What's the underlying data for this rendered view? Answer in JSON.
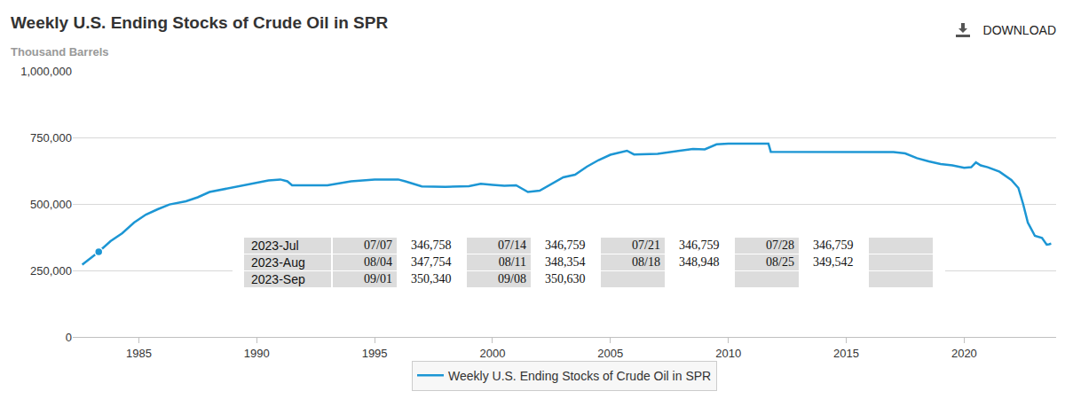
{
  "chart_data": {
    "type": "line",
    "title": "Weekly U.S. Ending Stocks of Crude Oil in SPR",
    "subtitle": "Thousand Barrels",
    "button": "DOWNLOAD",
    "x": [
      1982.6,
      1983.3,
      1983.8,
      1984.3,
      1984.8,
      1985.3,
      1985.8,
      1986.3,
      1987.0,
      1987.5,
      1988.0,
      1989.0,
      1990.0,
      1990.5,
      1991.0,
      1991.3,
      1991.5,
      1993.0,
      1994.0,
      1995.0,
      1996.0,
      1996.3,
      1997.0,
      1998.0,
      1999.0,
      1999.5,
      2000.0,
      2000.5,
      2001.0,
      2001.5,
      2002.0,
      2002.5,
      2003.0,
      2003.5,
      2004.0,
      2004.5,
      2005.0,
      2005.7,
      2006.0,
      2007.0,
      2008.0,
      2008.5,
      2009.0,
      2009.5,
      2010.0,
      2011.0,
      2011.7,
      2011.8,
      2013.0,
      2014.0,
      2015.0,
      2016.0,
      2017.0,
      2017.5,
      2018.0,
      2018.5,
      2019.0,
      2019.5,
      2020.0,
      2020.3,
      2020.5,
      2020.7,
      2021.0,
      2021.5,
      2022.0,
      2022.3,
      2022.5,
      2022.7,
      2023.0,
      2023.3,
      2023.5,
      2023.6,
      2023.69
    ],
    "series": [
      {
        "name": "Weekly U.S. Ending Stocks of Crude Oil in SPR",
        "color": "#1c96d4",
        "values": [
          272000,
          320000,
          360000,
          390000,
          430000,
          460000,
          480000,
          498000,
          510000,
          525000,
          545000,
          562000,
          580000,
          588000,
          592000,
          585000,
          570000,
          570000,
          585000,
          592000,
          592000,
          585000,
          566000,
          564000,
          567000,
          576000,
          572000,
          568000,
          570000,
          545000,
          550000,
          575000,
          600000,
          610000,
          640000,
          665000,
          685000,
          700000,
          686000,
          688000,
          700000,
          707000,
          705000,
          724000,
          727000,
          727000,
          727000,
          696000,
          696000,
          695000,
          695000,
          695000,
          695000,
          690000,
          672000,
          660000,
          650000,
          645000,
          636000,
          638000,
          656000,
          645000,
          638000,
          621000,
          590000,
          560000,
          500000,
          430000,
          380000,
          372000,
          346758,
          348354,
          350630
        ]
      }
    ],
    "highlight": {
      "x": 1983.3,
      "value": 320000
    },
    "xlim": [
      1982.2,
      2023.9
    ],
    "xticks": [
      1985,
      1990,
      1995,
      2000,
      2005,
      2010,
      2015,
      2020
    ],
    "ylim": [
      0,
      1000000
    ],
    "yticks": [
      0,
      {
        "value": 250000,
        "label": "250,000"
      },
      {
        "value": 500000,
        "label": "500,000"
      },
      {
        "value": 750000,
        "label": "750,000"
      },
      {
        "value": 1000000,
        "label": "1,000,000"
      }
    ],
    "grid": true,
    "legend": "bottom",
    "table": {
      "rows": [
        {
          "label": "2023-Jul",
          "cells": [
            [
              "07/07",
              "346,758"
            ],
            [
              "07/14",
              "346,759"
            ],
            [
              "07/21",
              "346,759"
            ],
            [
              "07/28",
              "346,759"
            ],
            [
              null,
              null
            ]
          ]
        },
        {
          "label": "2023-Aug",
          "cells": [
            [
              "08/04",
              "347,754"
            ],
            [
              "08/11",
              "348,354"
            ],
            [
              "08/18",
              "348,948"
            ],
            [
              "08/25",
              "349,542"
            ],
            [
              null,
              null
            ]
          ]
        },
        {
          "label": "2023-Sep",
          "cells": [
            [
              "09/01",
              "350,340"
            ],
            [
              "09/08",
              "350,630"
            ],
            [
              null,
              null
            ],
            [
              null,
              null
            ],
            [
              null,
              null
            ]
          ]
        }
      ]
    }
  }
}
